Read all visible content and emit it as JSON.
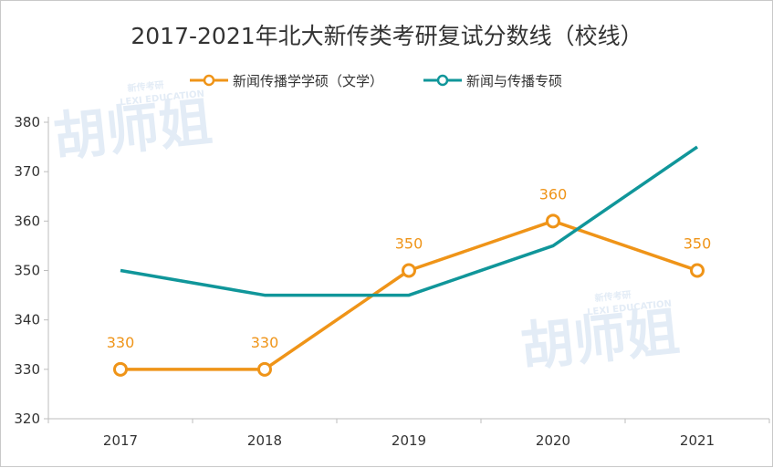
{
  "chart_data": {
    "type": "line",
    "title": "2017-2021年北大新传类考研复试分数线（校线）",
    "categories": [
      "2017",
      "2018",
      "2019",
      "2020",
      "2021"
    ],
    "ylim": [
      320,
      380
    ],
    "yticks": [
      320,
      330,
      340,
      350,
      360,
      370,
      380
    ],
    "grid": false,
    "legend_position": "top-center",
    "series": [
      {
        "name": "新闻传播学学硕（文学）",
        "color": "#ef9418",
        "values": [
          330,
          330,
          350,
          360,
          350
        ],
        "label_position": [
          "above",
          "above",
          "above",
          "above",
          "above"
        ]
      },
      {
        "name": "新闻与传播专硕",
        "color": "#10969a",
        "values": [
          350,
          345,
          345,
          355,
          375
        ],
        "label_position": [
          "above",
          "above",
          "below",
          "below",
          "above"
        ]
      }
    ]
  },
  "watermark": {
    "text": "胡师姐",
    "subtext": "LEXI EDUCATION",
    "badge": "新传考研"
  },
  "colors": {
    "axis": "#bdbdbd",
    "text": "#333333",
    "watermark": "#e3ecf6"
  }
}
